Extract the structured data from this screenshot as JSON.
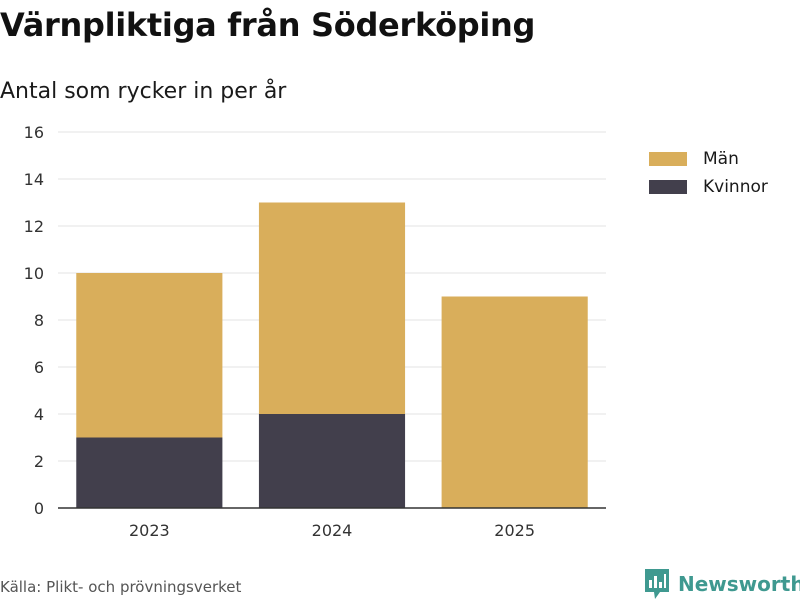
{
  "header": {
    "title": "Värnpliktiga från Söderköping",
    "subtitle": "Antal som rycker in per år"
  },
  "legend": {
    "items": [
      {
        "label": "Män",
        "color": "#d9ae5b"
      },
      {
        "label": "Kvinnor",
        "color": "#423f4c"
      }
    ]
  },
  "footer": {
    "source": "Källa: Plikt- och prövningsverket",
    "brand": "Newsworthy",
    "brand_icon": "newsworthy-logo-icon",
    "brand_color": "#3f9990"
  },
  "chart_data": {
    "type": "bar",
    "stacked": true,
    "categories": [
      "2023",
      "2024",
      "2025"
    ],
    "series": [
      {
        "name": "Kvinnor",
        "values": [
          3,
          4,
          0
        ],
        "color": "#423f4c"
      },
      {
        "name": "Män",
        "values": [
          7,
          9,
          9
        ],
        "color": "#d9ae5b"
      }
    ],
    "xlabel": "",
    "ylabel": "",
    "ylim": [
      0,
      16
    ],
    "yticks": [
      0,
      2,
      4,
      6,
      8,
      10,
      12,
      14,
      16
    ],
    "grid": true,
    "legend_position": "right"
  }
}
